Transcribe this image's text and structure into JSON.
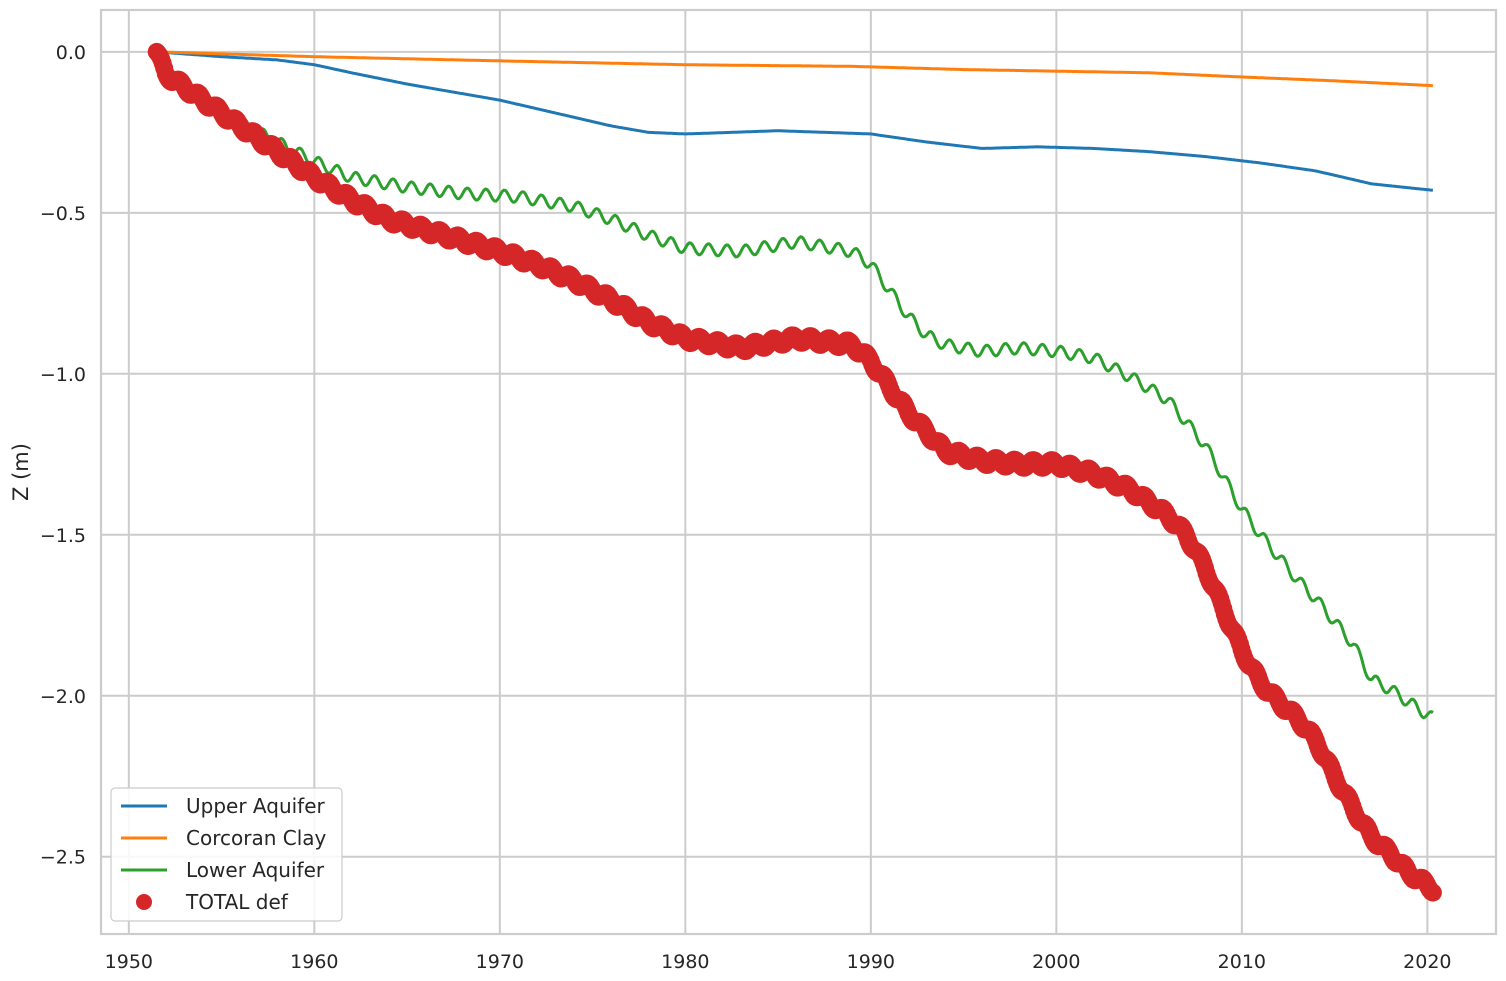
{
  "chart_data": {
    "type": "line",
    "title": "",
    "xlabel": "",
    "ylabel": "Z (m)",
    "xlim": [
      1948.5,
      2023.7
    ],
    "ylim": [
      -2.74,
      0.13
    ],
    "xticks": [
      1950,
      1960,
      1970,
      1980,
      1990,
      2000,
      2010,
      2020
    ],
    "xtick_labels": [
      "1950",
      "1960",
      "1970",
      "1980",
      "1990",
      "2000",
      "2010",
      "2020"
    ],
    "yticks": [
      0.0,
      -0.5,
      -1.0,
      -1.5,
      -2.0,
      -2.5
    ],
    "ytick_labels": [
      "0.0",
      "−0.5",
      "−1.0",
      "−1.5",
      "−2.0",
      "−2.5"
    ],
    "grid": true,
    "legend_position": "lower-left",
    "series": [
      {
        "name": "Upper Aquifer",
        "color": "#1f77b4",
        "style": "line",
        "x": [
          1951.5,
          1955,
          1958,
          1960,
          1962,
          1965,
          1968,
          1970,
          1973,
          1976,
          1978,
          1980,
          1985,
          1990,
          1993,
          1996,
          1999,
          2002,
          2005,
          2008,
          2011,
          2014,
          2017,
          2020.3
        ],
        "y": [
          0.0,
          -0.015,
          -0.025,
          -0.04,
          -0.065,
          -0.1,
          -0.13,
          -0.15,
          -0.19,
          -0.23,
          -0.25,
          -0.255,
          -0.245,
          -0.255,
          -0.28,
          -0.3,
          -0.295,
          -0.3,
          -0.31,
          -0.325,
          -0.345,
          -0.37,
          -0.41,
          -0.43
        ]
      },
      {
        "name": "Corcoran Clay",
        "color": "#ff7f0e",
        "style": "line",
        "x": [
          1951.5,
          1960,
          1970,
          1980,
          1989,
          1995,
          2005,
          2010,
          2015,
          2020.3
        ],
        "y": [
          0.0,
          -0.015,
          -0.028,
          -0.04,
          -0.045,
          -0.055,
          -0.065,
          -0.078,
          -0.09,
          -0.105
        ]
      },
      {
        "name": "Lower Aquifer",
        "color": "#2ca02c",
        "style": "line",
        "x": [
          1956,
          1958,
          1960,
          1962,
          1965,
          1968,
          1971,
          1974,
          1976,
          1978,
          1980,
          1983,
          1986,
          1989,
          1990,
          1991,
          1992,
          1993,
          1994,
          1996,
          1998,
          2000,
          2002,
          2004,
          2006,
          2008,
          2009,
          2010,
          2011,
          2012,
          2013,
          2014,
          2015,
          2016,
          2017,
          2018,
          2019,
          2020.3
        ],
        "y": [
          -0.22,
          -0.28,
          -0.34,
          -0.39,
          -0.42,
          -0.44,
          -0.45,
          -0.48,
          -0.52,
          -0.57,
          -0.61,
          -0.62,
          -0.59,
          -0.62,
          -0.66,
          -0.74,
          -0.82,
          -0.88,
          -0.91,
          -0.93,
          -0.92,
          -0.93,
          -0.95,
          -1.01,
          -1.08,
          -1.22,
          -1.32,
          -1.42,
          -1.5,
          -1.57,
          -1.64,
          -1.7,
          -1.77,
          -1.84,
          -1.95,
          -1.98,
          -2.02,
          -2.07
        ]
      },
      {
        "name": "TOTAL def",
        "color": "#d62728",
        "style": "marker",
        "x": [
          1951.5,
          1952,
          1954,
          1956,
          1958,
          1960,
          1962,
          1964,
          1967,
          1970,
          1972,
          1974,
          1976,
          1978,
          1980,
          1983,
          1986,
          1989,
          1990,
          1991,
          1992,
          1993,
          1994,
          1996,
          1998,
          2000,
          2002,
          2004,
          2006,
          2007,
          2008,
          2009,
          2010,
          2011,
          2012,
          2013,
          2014,
          2015,
          2016,
          2017,
          2018,
          2019,
          2020.3
        ],
        "y": [
          0.0,
          -0.07,
          -0.15,
          -0.23,
          -0.31,
          -0.39,
          -0.46,
          -0.52,
          -0.57,
          -0.62,
          -0.66,
          -0.71,
          -0.77,
          -0.84,
          -0.89,
          -0.92,
          -0.89,
          -0.91,
          -0.96,
          -1.04,
          -1.12,
          -1.18,
          -1.24,
          -1.27,
          -1.28,
          -1.28,
          -1.31,
          -1.36,
          -1.44,
          -1.5,
          -1.6,
          -1.73,
          -1.86,
          -1.96,
          -2.02,
          -2.07,
          -2.14,
          -2.25,
          -2.35,
          -2.44,
          -2.49,
          -2.55,
          -2.6
        ]
      }
    ]
  }
}
